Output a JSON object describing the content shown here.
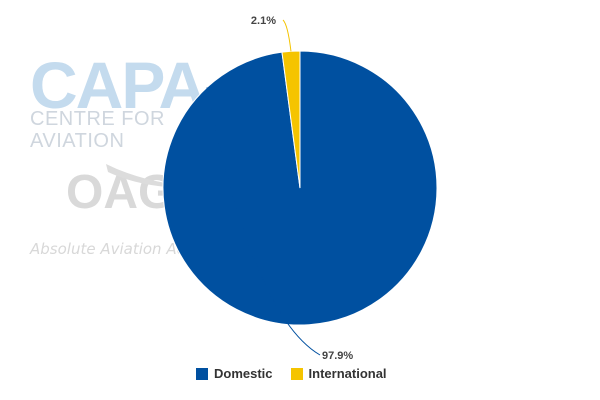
{
  "watermarks": {
    "capa_logo": "CAPA",
    "capa_tagline": "CENTRE FOR AVIATION",
    "oag_logo": "OAG",
    "oag_tagline": "Absolute Aviation Advantage"
  },
  "chart_data": {
    "type": "pie",
    "categories": [
      "Domestic",
      "International"
    ],
    "values": [
      97.9,
      2.1
    ],
    "data_labels": [
      "97.9%",
      "2.1%"
    ],
    "colors": [
      "#0050a0",
      "#f5c400"
    ],
    "legend_position": "bottom"
  }
}
